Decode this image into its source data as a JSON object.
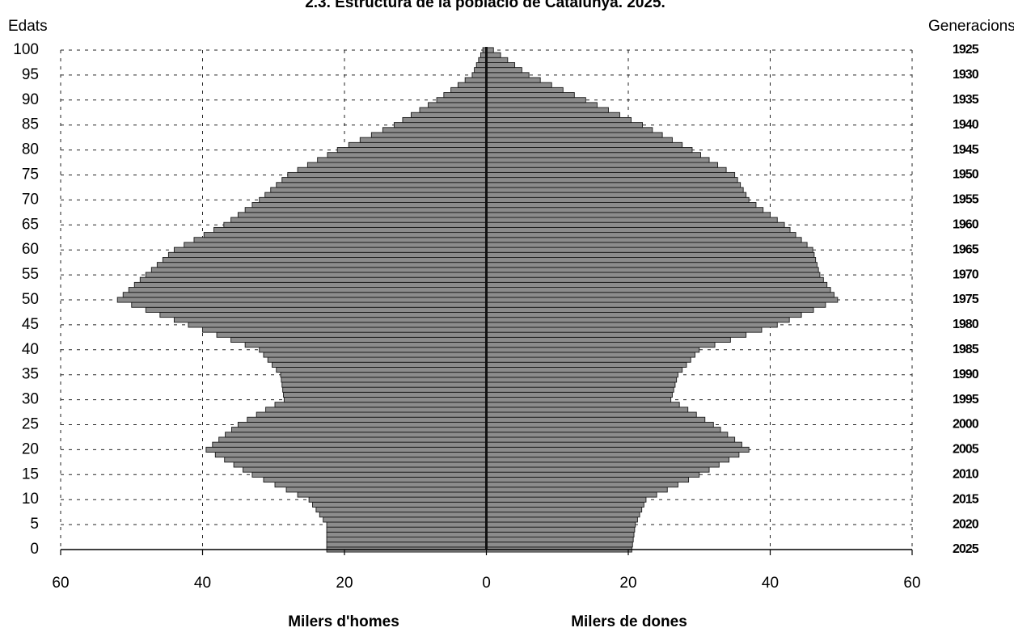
{
  "chart_data": {
    "type": "bar",
    "subtype": "population-pyramid",
    "title": "2.3. Estructura de la població de Catalunya. 2025.",
    "y_axis_title": "Edats",
    "right_axis_title": "Generacions",
    "x_left_label": "Milers d'homes",
    "x_right_label": "Milers de dones",
    "age_ticks": [
      "100",
      "95",
      "90",
      "85",
      "80",
      "75",
      "70",
      "65",
      "60",
      "55",
      "50",
      "45",
      "40",
      "35",
      "30",
      "25",
      "20",
      "15",
      "10",
      "5",
      "0"
    ],
    "generation_ticks": [
      "1925",
      "1930",
      "1935",
      "1940",
      "1945",
      "1950",
      "1955",
      "1960",
      "1965",
      "1970",
      "1975",
      "1980",
      "1985",
      "1990",
      "1995",
      "2000",
      "2005",
      "2010",
      "2015",
      "2020",
      "2025"
    ],
    "x_ticks": [
      "60",
      "40",
      "20",
      "0",
      "20",
      "40",
      "60"
    ],
    "xlim": [
      -60,
      60
    ],
    "ylim": [
      0,
      100
    ],
    "grid": true,
    "colors": {
      "bars": "#8c8c8c",
      "bar_edge": "#1a1a1a",
      "grid": "#222222",
      "center_line": "#111111"
    },
    "series": [
      {
        "name": "Milers d'homes",
        "ages": [
          0,
          5,
          10,
          15,
          20,
          25,
          30,
          35,
          40,
          45,
          50,
          55,
          60,
          65,
          70,
          75,
          80,
          85,
          90,
          95,
          100
        ],
        "values": [
          22.5,
          22.5,
          25,
          33,
          39.5,
          35,
          28.5,
          29,
          32,
          42,
          52,
          48,
          44,
          37,
          32,
          28,
          21,
          13,
          7,
          2,
          0.5
        ]
      },
      {
        "name": "Milers de dones",
        "ages": [
          0,
          5,
          10,
          15,
          20,
          25,
          30,
          35,
          40,
          45,
          50,
          55,
          60,
          65,
          70,
          75,
          80,
          85,
          90,
          95,
          100
        ],
        "values": [
          20.5,
          21,
          22.5,
          30,
          37,
          32,
          26,
          27,
          30,
          41,
          49.5,
          47,
          46,
          42,
          37,
          35,
          29,
          22,
          14,
          6,
          1
        ]
      }
    ]
  }
}
